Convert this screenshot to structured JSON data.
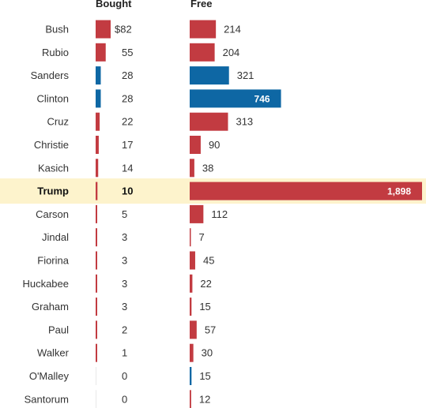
{
  "chart_data": {
    "type": "bar",
    "title": "",
    "columns": [
      {
        "key": "bought",
        "label": "Bought"
      },
      {
        "key": "free",
        "label": "Free"
      }
    ],
    "value_prefix_first_row": "$",
    "highlight": "Trump",
    "colors": {
      "republican": "#c23b41",
      "democrat": "#0e67a4",
      "highlight_band": "#fdf3cc",
      "gridline": "#e2e2e2",
      "inside_label": "#ffffff"
    },
    "rows": [
      {
        "name": "Bush",
        "party": "R",
        "bought": 82,
        "free": 214,
        "bought_label": "$82",
        "free_label": "214"
      },
      {
        "name": "Rubio",
        "party": "R",
        "bought": 55,
        "free": 204,
        "bought_label": "55",
        "free_label": "204"
      },
      {
        "name": "Sanders",
        "party": "D",
        "bought": 28,
        "free": 321,
        "bought_label": "28",
        "free_label": "321"
      },
      {
        "name": "Clinton",
        "party": "D",
        "bought": 28,
        "free": 746,
        "bought_label": "28",
        "free_label": "746"
      },
      {
        "name": "Cruz",
        "party": "R",
        "bought": 22,
        "free": 313,
        "bought_label": "22",
        "free_label": "313"
      },
      {
        "name": "Christie",
        "party": "R",
        "bought": 17,
        "free": 90,
        "bought_label": "17",
        "free_label": "90"
      },
      {
        "name": "Kasich",
        "party": "R",
        "bought": 14,
        "free": 38,
        "bought_label": "14",
        "free_label": "38"
      },
      {
        "name": "Trump",
        "party": "R",
        "bought": 10,
        "free": 1898,
        "bought_label": "10",
        "free_label": "1,898"
      },
      {
        "name": "Carson",
        "party": "R",
        "bought": 5,
        "free": 112,
        "bought_label": "5",
        "free_label": "112"
      },
      {
        "name": "Jindal",
        "party": "R",
        "bought": 3,
        "free": 7,
        "bought_label": "3",
        "free_label": "7"
      },
      {
        "name": "Fiorina",
        "party": "R",
        "bought": 3,
        "free": 45,
        "bought_label": "3",
        "free_label": "45"
      },
      {
        "name": "Huckabee",
        "party": "R",
        "bought": 3,
        "free": 22,
        "bought_label": "3",
        "free_label": "22"
      },
      {
        "name": "Graham",
        "party": "R",
        "bought": 3,
        "free": 15,
        "bought_label": "3",
        "free_label": "15"
      },
      {
        "name": "Paul",
        "party": "R",
        "bought": 2,
        "free": 57,
        "bought_label": "2",
        "free_label": "57"
      },
      {
        "name": "Walker",
        "party": "R",
        "bought": 1,
        "free": 30,
        "bought_label": "1",
        "free_label": "30"
      },
      {
        "name": "O'Malley",
        "party": "D",
        "bought": 0,
        "free": 15,
        "bought_label": "0",
        "free_label": "15"
      },
      {
        "name": "Santorum",
        "party": "R",
        "bought": 0,
        "free": 12,
        "bought_label": "0",
        "free_label": "12"
      }
    ]
  }
}
